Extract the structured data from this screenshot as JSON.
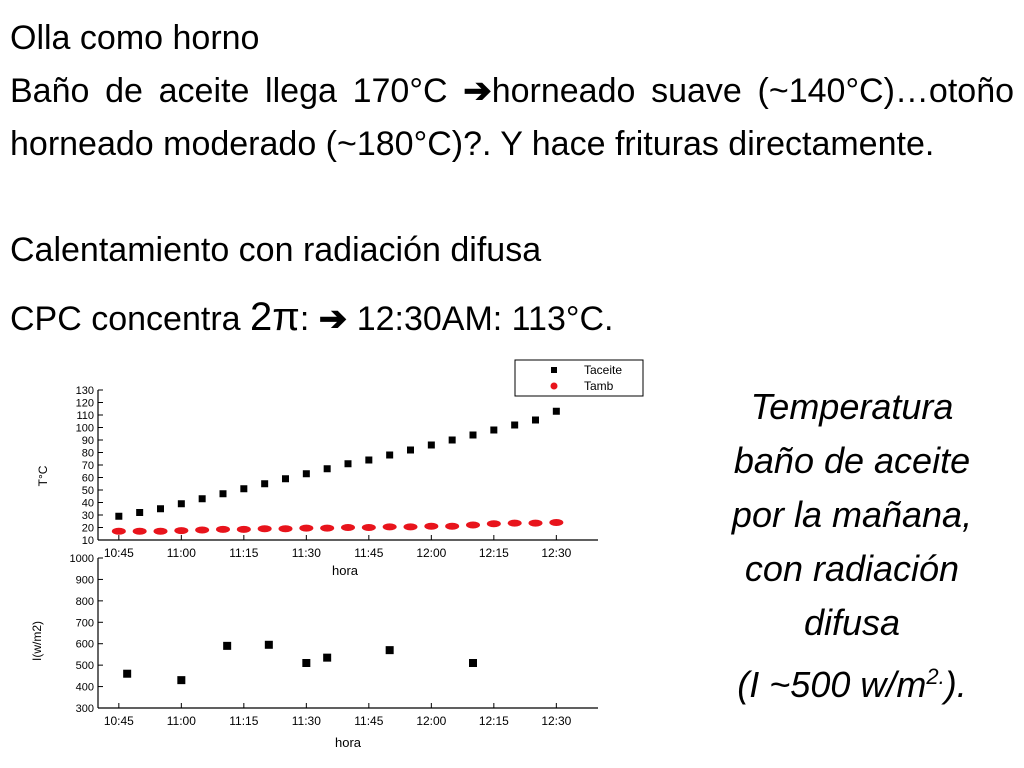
{
  "slide": {
    "title": "Olla como horno",
    "para_p1": "Baño de aceite llega 170",
    "deg_sym": "°",
    "para_p2": "C ",
    "arrow": "➔",
    "para_p3": "horneado suave (~140",
    "para_p4": "C)…otoño horneado moderado (~180",
    "para_p5": "C)?. Y hace frituras directamente.",
    "line3": "Calentamiento con radiación difusa",
    "cpc_a": "CPC concentra ",
    "cpc_pi": "2π",
    "cpc_b": ": ",
    "cpc_c": " 12:30AM: 113°C."
  },
  "caption": {
    "lines": [
      "Temperatura",
      "baño de aceite",
      "por la mañana,",
      "con radiación",
      "difusa"
    ],
    "last_pre": "(I ~500 w/m",
    "last_sup": "2.",
    "last_post": ")."
  },
  "chart_data": [
    {
      "type": "scatter",
      "title": "",
      "xlabel": "hora",
      "ylabel": "T°C",
      "xlim": [
        "10:40",
        "12:40"
      ],
      "ylim": [
        10,
        130
      ],
      "xticks": [
        "10:45",
        "11:00",
        "11:15",
        "11:30",
        "11:45",
        "12:00",
        "12:15",
        "12:30"
      ],
      "yticks": [
        10,
        20,
        30,
        40,
        50,
        60,
        70,
        80,
        90,
        100,
        110,
        120,
        130
      ],
      "legend_position": "top-right",
      "series": [
        {
          "name": "Taceite",
          "color": "#000000",
          "marker": "square",
          "x": [
            "10:45",
            "10:50",
            "10:55",
            "11:00",
            "11:05",
            "11:10",
            "11:15",
            "11:20",
            "11:25",
            "11:30",
            "11:35",
            "11:40",
            "11:45",
            "11:50",
            "11:55",
            "12:00",
            "12:05",
            "12:10",
            "12:15",
            "12:20",
            "12:25",
            "12:30"
          ],
          "y": [
            29,
            32,
            35,
            39,
            43,
            47,
            51,
            55,
            59,
            63,
            67,
            71,
            74,
            78,
            82,
            86,
            90,
            94,
            98,
            102,
            106,
            113
          ]
        },
        {
          "name": "Tamb",
          "color": "#e8141c",
          "marker": "circle",
          "x": [
            "10:45",
            "10:50",
            "10:55",
            "11:00",
            "11:05",
            "11:10",
            "11:15",
            "11:20",
            "11:25",
            "11:30",
            "11:35",
            "11:40",
            "11:45",
            "11:50",
            "11:55",
            "12:00",
            "12:05",
            "12:10",
            "12:15",
            "12:20",
            "12:25",
            "12:30"
          ],
          "y": [
            17,
            17,
            17,
            17.5,
            18,
            18.5,
            18.5,
            19,
            19,
            19.5,
            19.5,
            20,
            20,
            20.5,
            20.5,
            21,
            21,
            22,
            23,
            23.5,
            23.5,
            24
          ]
        }
      ]
    },
    {
      "type": "scatter",
      "title": "",
      "xlabel": "hora",
      "ylabel": "I(w/m2)",
      "xlim": [
        "10:40",
        "12:40"
      ],
      "ylim": [
        300,
        1000
      ],
      "xticks": [
        "10:45",
        "11:00",
        "11:15",
        "11:30",
        "11:45",
        "12:00",
        "12:15",
        "12:30"
      ],
      "yticks": [
        300,
        400,
        500,
        600,
        700,
        800,
        900,
        1000
      ],
      "series": [
        {
          "color": "#000000",
          "marker": "square",
          "x": [
            "10:47",
            "11:00",
            "11:11",
            "11:21",
            "11:30",
            "11:35",
            "11:50",
            "12:10"
          ],
          "y": [
            460,
            430,
            590,
            595,
            510,
            535,
            570,
            510
          ]
        }
      ]
    }
  ]
}
